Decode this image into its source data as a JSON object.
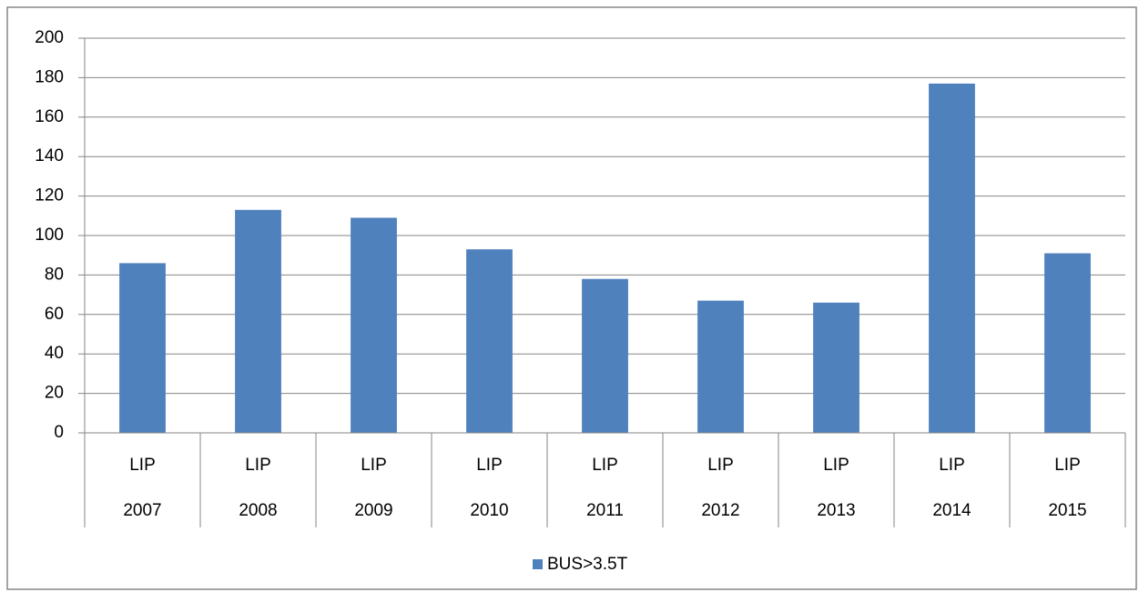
{
  "chart_data": {
    "type": "bar",
    "categories": [
      "2007",
      "2008",
      "2009",
      "2010",
      "2011",
      "2012",
      "2013",
      "2014",
      "2015"
    ],
    "subcategories": [
      "LIP",
      "LIP",
      "LIP",
      "LIP",
      "LIP",
      "LIP",
      "LIP",
      "LIP",
      "LIP"
    ],
    "series": [
      {
        "name": "BUS>3.5T",
        "color": "#4f81bd",
        "values": [
          86,
          113,
          109,
          93,
          78,
          67,
          66,
          177,
          91
        ]
      }
    ],
    "ylim": [
      0,
      200
    ],
    "yticks": [
      0,
      20,
      40,
      60,
      80,
      100,
      120,
      140,
      160,
      180,
      200
    ],
    "grid": true,
    "legend": "bottom"
  }
}
